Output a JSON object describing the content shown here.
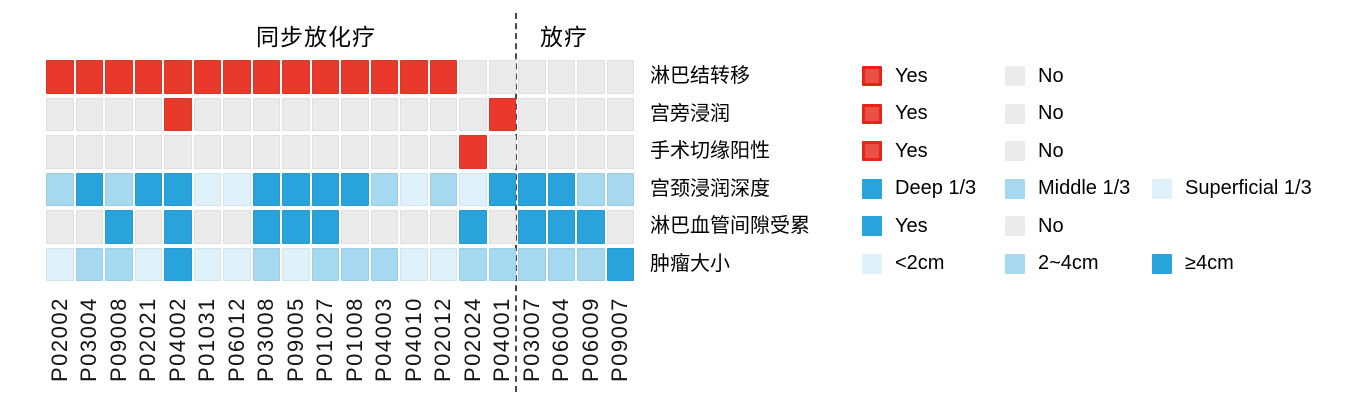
{
  "chart_data": {
    "type": "heatmap",
    "groups": [
      {
        "label": "同步放化疗",
        "patient_count": 16
      },
      {
        "label": "放疗",
        "patient_count": 4
      }
    ],
    "group_split_index": 16,
    "x": [
      "P02002",
      "P03004",
      "P09008",
      "P02021",
      "P04002",
      "P01031",
      "P06012",
      "P03008",
      "P09005",
      "P01027",
      "P01008",
      "P04003",
      "P04010",
      "P02012",
      "P02024",
      "P04001",
      "P03007",
      "P06004",
      "P06009",
      "P09007"
    ],
    "palette": {
      "red": "#E8392C",
      "red_swatch_fill": "#EA5044",
      "red_swatch_border": "#E7231A",
      "gray": "#EBEBEB",
      "deep": "#29A3DC",
      "medium": "#A6D9F0",
      "light": "#DFF1FA"
    },
    "rows": [
      {
        "name": "淋巴结转移",
        "values": [
          "Yes",
          "Yes",
          "Yes",
          "Yes",
          "Yes",
          "Yes",
          "Yes",
          "Yes",
          "Yes",
          "Yes",
          "Yes",
          "Yes",
          "Yes",
          "Yes",
          "No",
          "No",
          "No",
          "No",
          "No",
          "No"
        ],
        "value_colors": {
          "Yes": "red",
          "No": "gray"
        },
        "legend": [
          {
            "swatch": "red",
            "bordered": true,
            "text": "Yes"
          },
          {
            "swatch": "gray",
            "bordered": false,
            "text": "No"
          }
        ]
      },
      {
        "name": "宫旁浸润",
        "values": [
          "No",
          "No",
          "No",
          "No",
          "Yes",
          "No",
          "No",
          "No",
          "No",
          "No",
          "No",
          "No",
          "No",
          "No",
          "No",
          "Yes",
          "No",
          "No",
          "No",
          "No"
        ],
        "value_colors": {
          "Yes": "red",
          "No": "gray"
        },
        "legend": [
          {
            "swatch": "red",
            "bordered": true,
            "text": "Yes"
          },
          {
            "swatch": "gray",
            "bordered": false,
            "text": "No"
          }
        ]
      },
      {
        "name": "手术切缘阳性",
        "values": [
          "No",
          "No",
          "No",
          "No",
          "No",
          "No",
          "No",
          "No",
          "No",
          "No",
          "No",
          "No",
          "No",
          "No",
          "Yes",
          "No",
          "No",
          "No",
          "No",
          "No"
        ],
        "value_colors": {
          "Yes": "red",
          "No": "gray"
        },
        "legend": [
          {
            "swatch": "red",
            "bordered": true,
            "text": "Yes"
          },
          {
            "swatch": "gray",
            "bordered": false,
            "text": "No"
          }
        ]
      },
      {
        "name": "宫颈浸润深度",
        "values": [
          "Middle 1/3",
          "Deep 1/3",
          "Middle 1/3",
          "Deep 1/3",
          "Deep 1/3",
          "Superficial 1/3",
          "Superficial 1/3",
          "Deep 1/3",
          "Deep 1/3",
          "Deep 1/3",
          "Deep 1/3",
          "Middle 1/3",
          "Superficial 1/3",
          "Middle 1/3",
          "Superficial 1/3",
          "Deep 1/3",
          "Deep 1/3",
          "Deep 1/3",
          "Middle 1/3",
          "Middle 1/3"
        ],
        "value_colors": {
          "Deep 1/3": "deep",
          "Middle 1/3": "medium",
          "Superficial 1/3": "light"
        },
        "legend": [
          {
            "swatch": "deep",
            "bordered": false,
            "text": "Deep 1/3"
          },
          {
            "swatch": "medium",
            "bordered": false,
            "text": "Middle 1/3"
          },
          {
            "swatch": "light",
            "bordered": false,
            "text": "Superficial 1/3"
          }
        ]
      },
      {
        "name": "淋巴血管间隙受累",
        "values": [
          "No",
          "No",
          "Yes",
          "No",
          "Yes",
          "No",
          "No",
          "Yes",
          "Yes",
          "Yes",
          "No",
          "No",
          "No",
          "No",
          "Yes",
          "No",
          "Yes",
          "Yes",
          "Yes",
          "No"
        ],
        "value_colors": {
          "Yes": "deep",
          "No": "gray"
        },
        "legend": [
          {
            "swatch": "deep",
            "bordered": false,
            "text": "Yes"
          },
          {
            "swatch": "gray",
            "bordered": false,
            "text": "No"
          }
        ]
      },
      {
        "name": "肿瘤大小",
        "values": [
          "<2cm",
          "2~4cm",
          "2~4cm",
          "<2cm",
          "≥4cm",
          "<2cm",
          "<2cm",
          "2~4cm",
          "<2cm",
          "2~4cm",
          "2~4cm",
          "2~4cm",
          "<2cm",
          "<2cm",
          "2~4cm",
          "2~4cm",
          "2~4cm",
          "2~4cm",
          "2~4cm",
          "≥4cm"
        ],
        "value_colors": {
          "<2cm": "light",
          "2~4cm": "medium",
          "≥4cm": "deep"
        },
        "legend": [
          {
            "swatch": "light",
            "bordered": false,
            "text": "<2cm"
          },
          {
            "swatch": "medium",
            "bordered": false,
            "text": "2~4cm"
          },
          {
            "swatch": "deep",
            "bordered": false,
            "text": "≥4cm"
          }
        ]
      }
    ]
  }
}
